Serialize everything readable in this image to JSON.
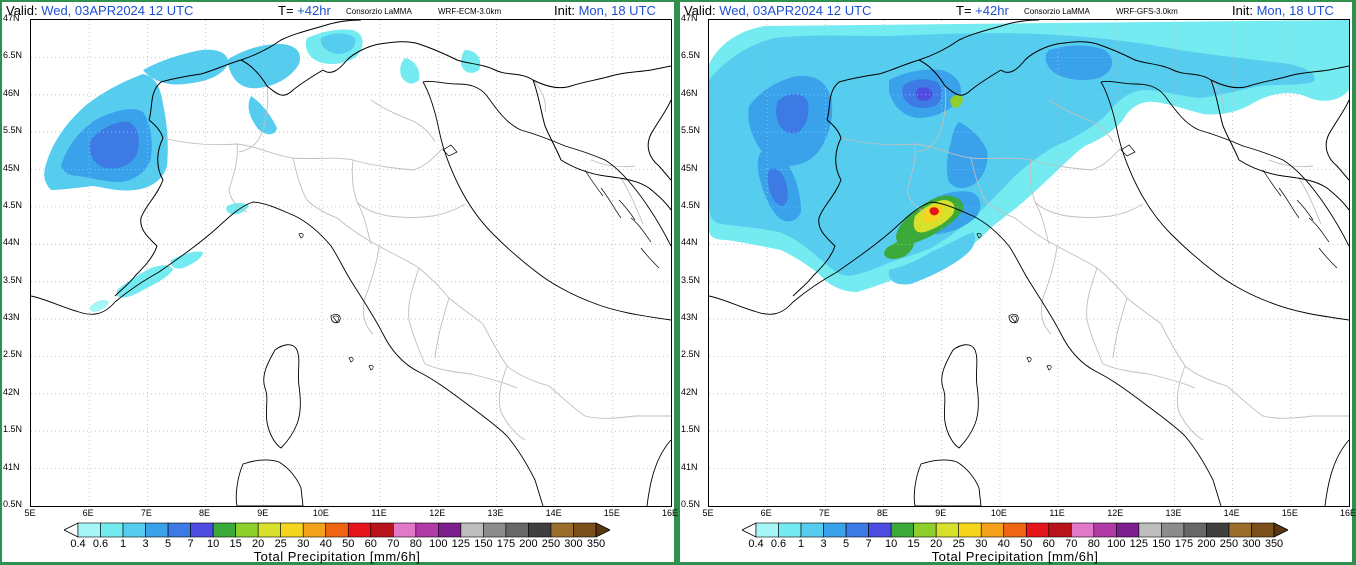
{
  "header": {
    "valid_label": "Valid:",
    "valid_value": "Wed, 03APR2024   12 UTC",
    "t_label": "T=",
    "t_value": "+42hr",
    "org": "Consorzio LaMMA",
    "init_label": "Init:",
    "init_value": "Mon, 18 UTC"
  },
  "panels": [
    {
      "id": "left",
      "model": "WRF-ECM-3.0km"
    },
    {
      "id": "right",
      "model": "WRF-GFS-3.0km"
    }
  ],
  "lat_labels": [
    "47N",
    "6.5N",
    "46N",
    "5.5N",
    "45N",
    "4.5N",
    "44N",
    "3.5N",
    "43N",
    "2.5N",
    "42N",
    "1.5N",
    "41N",
    "0.5N"
  ],
  "lon_labels": [
    "5E",
    "6E",
    "7E",
    "8E",
    "9E",
    "10E",
    "11E",
    "12E",
    "13E",
    "14E",
    "15E",
    "16E"
  ],
  "colorbar": {
    "title": "Total Precipitation [mm/6h]",
    "levels": [
      "0.4",
      "0.6",
      "1",
      "3",
      "5",
      "7",
      "10",
      "15",
      "20",
      "25",
      "30",
      "40",
      "50",
      "60",
      "70",
      "80",
      "100",
      "125",
      "150",
      "175",
      "200",
      "250",
      "300",
      "350"
    ],
    "colors": [
      "#ffffff",
      "#a6f5f7",
      "#74ebf0",
      "#56cdee",
      "#3aa1eb",
      "#3d7ae4",
      "#4f4ce2",
      "#3caa3a",
      "#8ecf2c",
      "#d7e02a",
      "#f5d51e",
      "#f4a11b",
      "#ee6514",
      "#e5131a",
      "#b8121d",
      "#e178c8",
      "#b23aa6",
      "#7c1e8c",
      "#bdbdbd",
      "#8c8c8c",
      "#676767",
      "#3f3f3f",
      "#9a6e2a",
      "#7a4f1c",
      "#5b3511"
    ]
  },
  "layers": {
    "grid_color": "#bbbbbb",
    "border_color": "#000000",
    "region_color": "#bfbfbf"
  }
}
